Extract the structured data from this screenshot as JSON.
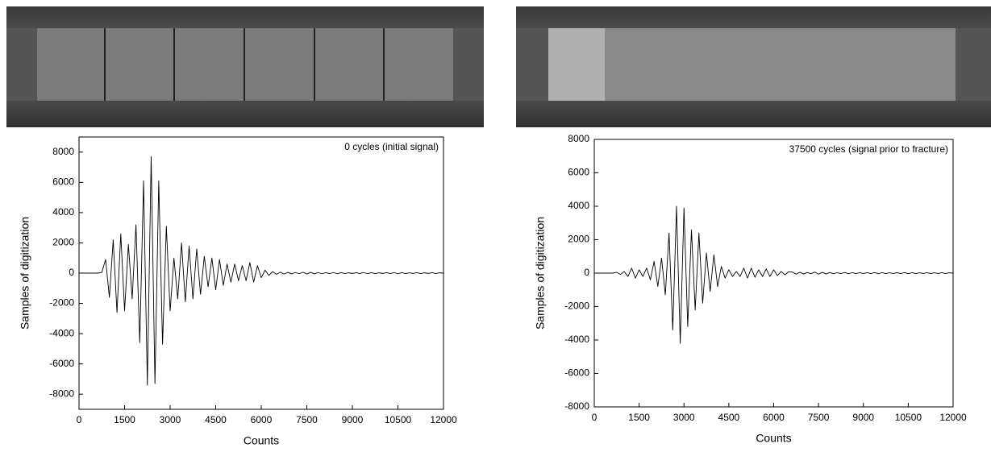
{
  "chart_data": [
    {
      "type": "line",
      "annotation": "0 cycles (initial signal)",
      "x_label": "Counts",
      "y_label": "Samples of digitization",
      "color": "#000000",
      "x": [
        0,
        125,
        250,
        375,
        500,
        625,
        750,
        875,
        1000,
        1125,
        1250,
        1375,
        1500,
        1625,
        1750,
        1875,
        2000,
        2125,
        2250,
        2375,
        2500,
        2625,
        2750,
        2875,
        3000,
        3125,
        3250,
        3375,
        3500,
        3625,
        3750,
        3875,
        4000,
        4125,
        4250,
        4375,
        4500,
        4625,
        4750,
        4875,
        5000,
        5125,
        5250,
        5375,
        5500,
        5625,
        5750,
        5875,
        6000,
        6125,
        6250,
        6375,
        6500,
        6625,
        6750,
        6875,
        7000,
        7125,
        7250,
        7375,
        7500,
        7625,
        7750,
        7875,
        8000,
        8125,
        8250,
        8375,
        8500,
        8625,
        8750,
        8875,
        9000,
        9125,
        9250,
        9375,
        9500,
        9625,
        9750,
        9875,
        10000,
        10125,
        10250,
        10375,
        10500,
        10625,
        10750,
        10875,
        11000,
        11125,
        11250,
        11375,
        11500,
        11625,
        11750,
        11875,
        12000
      ],
      "values": [
        0,
        0,
        0,
        0,
        0,
        0,
        50,
        900,
        -1600,
        2200,
        -2600,
        2600,
        -2500,
        1900,
        -1700,
        3200,
        -4600,
        6100,
        -7400,
        7700,
        -7300,
        6100,
        -4700,
        3100,
        -2500,
        1000,
        -1700,
        2000,
        -1900,
        1800,
        -1700,
        1600,
        -1400,
        1100,
        -900,
        1000,
        -1100,
        900,
        -800,
        600,
        -600,
        600,
        -500,
        500,
        -500,
        700,
        -600,
        500,
        -300,
        200,
        -150,
        100,
        -80,
        60,
        -60,
        50,
        -50,
        40,
        -40,
        60,
        -60,
        50,
        -50,
        40,
        -40,
        30,
        -30,
        40,
        -40,
        30,
        -30,
        20,
        -20,
        30,
        -30,
        40,
        -40,
        30,
        -30,
        20,
        -20,
        30,
        -30,
        40,
        -40,
        30,
        -30,
        20,
        -20,
        30,
        -30,
        20,
        -20,
        30,
        -30,
        20,
        0
      ],
      "xlim": [
        0,
        12000
      ],
      "xticks": [
        0,
        1500,
        3000,
        4500,
        6000,
        7500,
        9000,
        10500,
        12000
      ],
      "ylim": [
        -9000,
        9000
      ],
      "yticks": [
        -8000,
        -6000,
        -4000,
        -2000,
        0,
        2000,
        4000,
        6000,
        8000
      ]
    },
    {
      "type": "line",
      "annotation": "37500 cycles (signal prior to fracture)",
      "x_label": "Counts",
      "y_label": "Samples of digitization",
      "color": "#000000",
      "x": [
        0,
        125,
        250,
        375,
        500,
        625,
        750,
        875,
        1000,
        1125,
        1250,
        1375,
        1500,
        1625,
        1750,
        1875,
        2000,
        2125,
        2250,
        2375,
        2500,
        2625,
        2750,
        2875,
        3000,
        3125,
        3250,
        3375,
        3500,
        3625,
        3750,
        3875,
        4000,
        4125,
        4250,
        4375,
        4500,
        4625,
        4750,
        4875,
        5000,
        5125,
        5250,
        5375,
        5500,
        5625,
        5750,
        5875,
        6000,
        6125,
        6250,
        6375,
        6500,
        6625,
        6750,
        6875,
        7000,
        7125,
        7250,
        7375,
        7500,
        7625,
        7750,
        7875,
        8000,
        8125,
        8250,
        8375,
        8500,
        8625,
        8750,
        8875,
        9000,
        9125,
        9250,
        9375,
        9500,
        9625,
        9750,
        9875,
        10000,
        10125,
        10250,
        10375,
        10500,
        10625,
        10750,
        10875,
        11000,
        11125,
        11250,
        11375,
        11500,
        11625,
        11750,
        11875,
        12000
      ],
      "values": [
        0,
        0,
        0,
        0,
        0,
        0,
        50,
        -80,
        100,
        -200,
        300,
        -300,
        200,
        -200,
        300,
        -400,
        700,
        -800,
        900,
        -1300,
        2400,
        -3400,
        4000,
        -4200,
        3900,
        -3200,
        2600,
        -2200,
        2400,
        -1800,
        1200,
        -1100,
        1100,
        -800,
        400,
        -300,
        200,
        -200,
        100,
        -200,
        300,
        -300,
        300,
        -250,
        200,
        -200,
        250,
        -200,
        200,
        -150,
        100,
        -100,
        80,
        60,
        -60,
        50,
        -50,
        40,
        -40,
        60,
        -60,
        50,
        -50,
        40,
        -40,
        30,
        -30,
        40,
        -40,
        30,
        -30,
        20,
        -20,
        30,
        -30,
        40,
        -40,
        30,
        -30,
        20,
        -20,
        30,
        -30,
        40,
        -40,
        30,
        -30,
        20,
        -20,
        30,
        -30,
        20,
        -20,
        30,
        -30,
        20,
        0
      ],
      "xlim": [
        0,
        12000
      ],
      "xticks": [
        0,
        1500,
        3000,
        4500,
        6000,
        7500,
        9000,
        10500,
        12000
      ],
      "ylim": [
        -8000,
        8000
      ],
      "yticks": [
        -8000,
        -6000,
        -4000,
        -2000,
        0,
        2000,
        4000,
        6000,
        8000
      ]
    }
  ]
}
